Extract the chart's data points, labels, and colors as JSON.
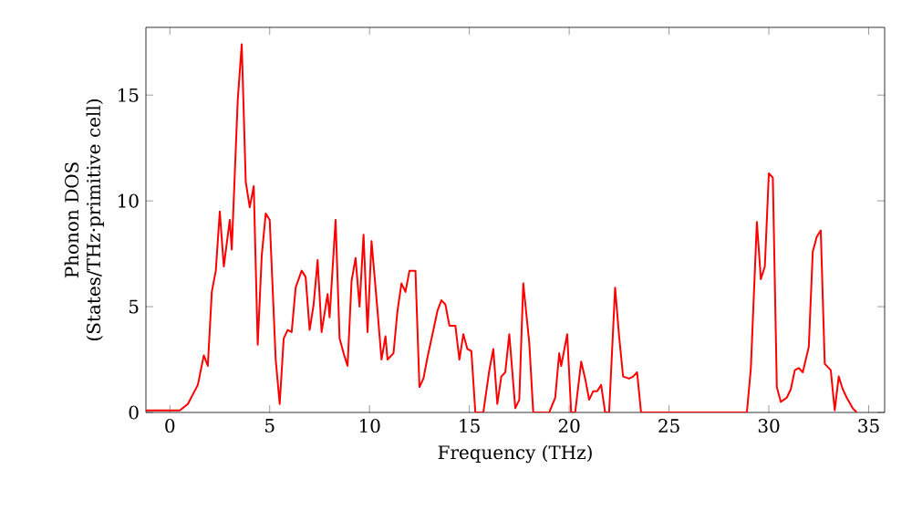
{
  "chart_data": {
    "type": "line",
    "xlabel": "Frequency (THz)",
    "ylabel": "Phonon DOS (States/THz·primitive cell)",
    "xlim": [
      -1.2,
      35.8
    ],
    "ylim": [
      0,
      18.2
    ],
    "xticks": [
      0,
      5,
      10,
      15,
      20,
      25,
      30,
      35
    ],
    "yticks": [
      0,
      5,
      10,
      15
    ],
    "grid": false,
    "marker": "none",
    "line_style": "solid",
    "series": [
      {
        "color": "#ff0000",
        "x": [
          -1.2,
          -0.8,
          0,
          0.5,
          0.9,
          1.4,
          1.7,
          1.9,
          2.1,
          2.3,
          2.5,
          2.7,
          3.0,
          3.1,
          3.4,
          3.6,
          3.8,
          4.0,
          4.2,
          4.4,
          4.6,
          4.8,
          5.0,
          5.3,
          5.5,
          5.7,
          5.9,
          6.1,
          6.3,
          6.6,
          6.8,
          7.0,
          7.2,
          7.4,
          7.6,
          7.9,
          8.0,
          8.3,
          8.5,
          8.7,
          8.9,
          9.1,
          9.3,
          9.5,
          9.7,
          9.9,
          10.1,
          10.4,
          10.6,
          10.8,
          10.9,
          11.2,
          11.4,
          11.6,
          11.8,
          12.0,
          12.3,
          12.5,
          12.7,
          12.9,
          13.2,
          13.4,
          13.6,
          13.8,
          14.0,
          14.3,
          14.5,
          14.7,
          14.9,
          15.1,
          15.3,
          15.7,
          16.0,
          16.2,
          16.4,
          16.6,
          16.8,
          17.0,
          17.3,
          17.5,
          17.7,
          18.0,
          18.2,
          19.0,
          19.3,
          19.5,
          19.6,
          19.9,
          20.1,
          20.3,
          20.6,
          20.8,
          21.0,
          21.2,
          21.4,
          21.6,
          21.8,
          22.0,
          22.3,
          22.5,
          22.7,
          23.0,
          23.2,
          23.4,
          23.6,
          28.9,
          29.1,
          29.4,
          29.6,
          29.8,
          30.0,
          30.2,
          30.4,
          30.6,
          30.9,
          31.1,
          31.3,
          31.5,
          31.7,
          32.0,
          32.2,
          32.4,
          32.6,
          32.8,
          33.1,
          33.3,
          33.5,
          33.7,
          33.9,
          34.2,
          34.4
        ],
        "values": [
          0.1,
          0.1,
          0.1,
          0.1,
          0.4,
          1.3,
          2.7,
          2.2,
          5.7,
          6.7,
          9.5,
          6.9,
          9.1,
          7.7,
          14.8,
          17.4,
          10.9,
          9.7,
          10.7,
          3.2,
          7.4,
          9.4,
          9.1,
          2.5,
          0.4,
          3.5,
          3.9,
          3.8,
          5.9,
          6.7,
          6.4,
          3.9,
          5.1,
          7.2,
          3.8,
          5.6,
          4.5,
          9.1,
          3.5,
          2.8,
          2.2,
          6.2,
          7.3,
          5.0,
          8.4,
          3.8,
          8.1,
          4.8,
          2.5,
          3.6,
          2.5,
          2.8,
          4.8,
          6.1,
          5.7,
          6.7,
          6.7,
          1.2,
          1.6,
          2.6,
          3.9,
          4.8,
          5.3,
          5.1,
          4.1,
          4.1,
          2.5,
          3.7,
          3.0,
          2.9,
          0,
          0,
          2.0,
          3.0,
          0.4,
          1.7,
          1.9,
          3.7,
          0.2,
          0.6,
          6.1,
          3.3,
          0,
          0,
          0.7,
          2.8,
          2.2,
          3.7,
          0,
          0,
          2.4,
          1.6,
          0.6,
          1.0,
          1.0,
          1.3,
          0,
          0,
          5.9,
          3.6,
          1.7,
          1.6,
          1.7,
          1.9,
          0,
          0,
          2.1,
          9.0,
          6.3,
          6.9,
          11.3,
          11.1,
          1.2,
          0.5,
          0.7,
          1.1,
          2.0,
          2.1,
          1.9,
          3.1,
          7.6,
          8.3,
          8.6,
          2.3,
          2.0,
          0.1,
          1.7,
          1.1,
          0.7,
          0.2,
          0
        ]
      }
    ]
  }
}
